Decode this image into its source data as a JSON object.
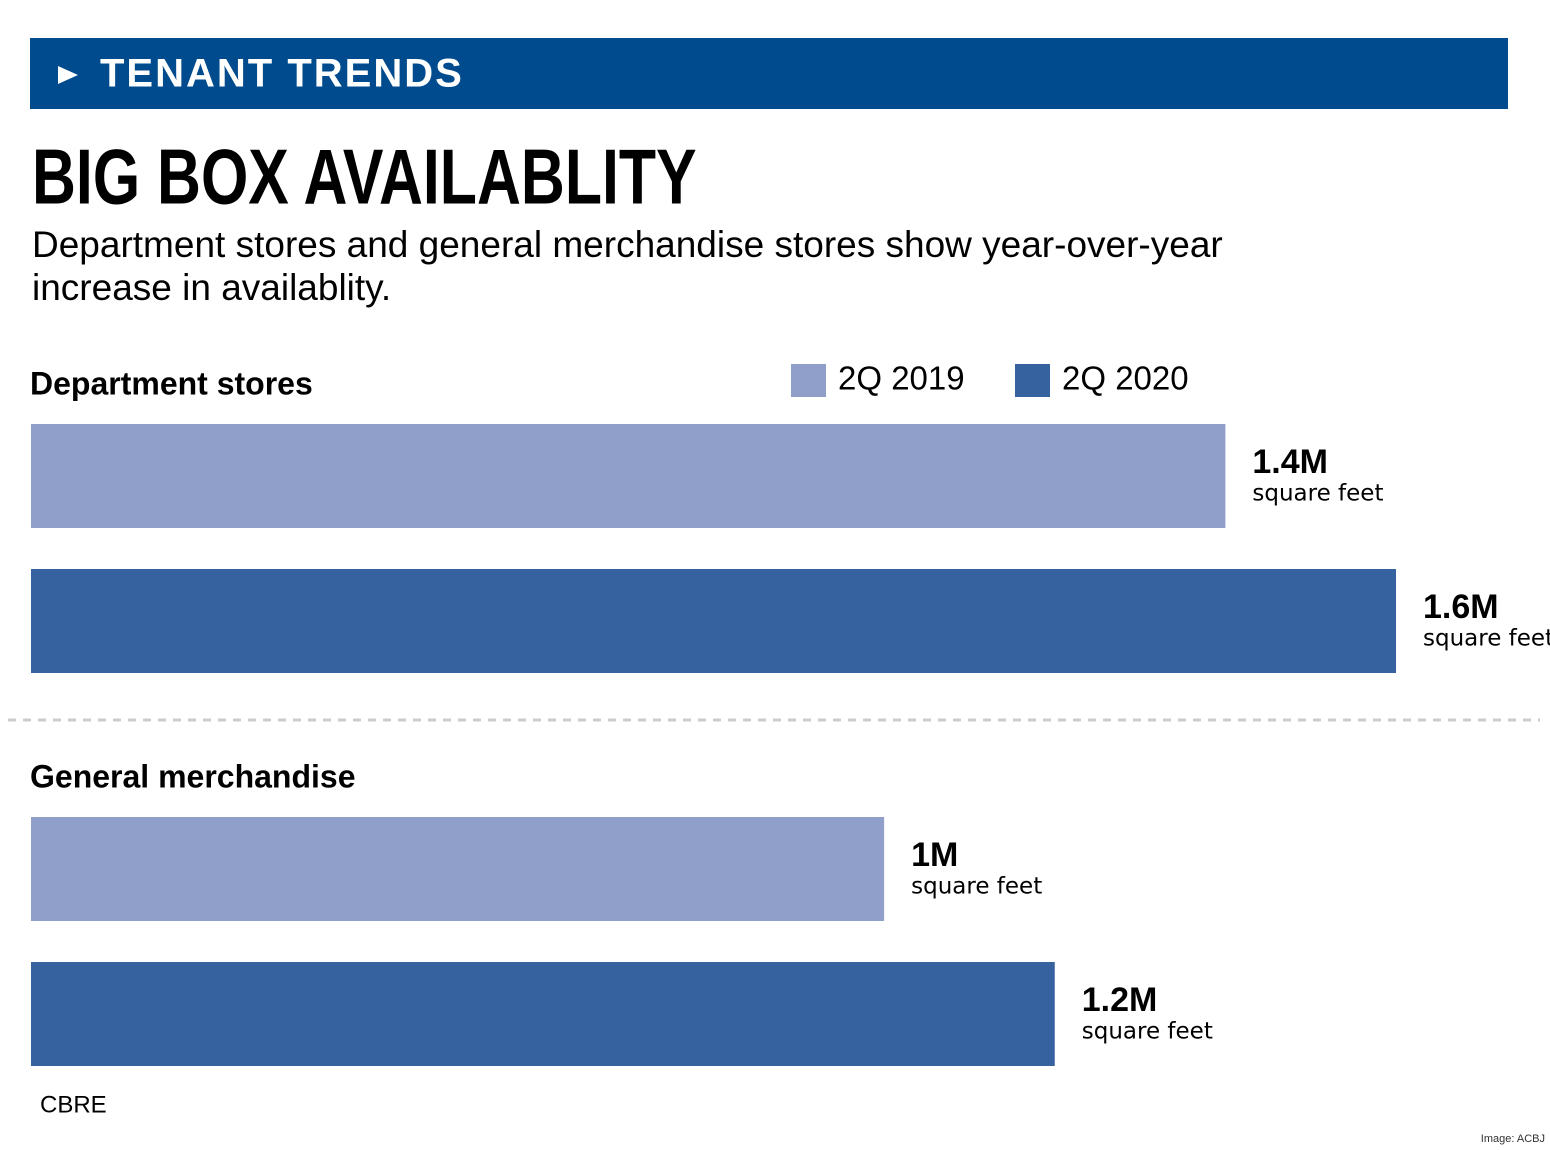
{
  "header": "TENANT TRENDS",
  "chart_data": {
    "type": "bar",
    "title": "BIG BOX AVAILABLITY",
    "subtitle": [
      "Department stores and general merchandise stores show year-over-year",
      "increase in availablity."
    ],
    "categories": [
      "Department stores",
      "General merchandise"
    ],
    "series": [
      {
        "name": "2Q 2019",
        "color": "#8f9fc9",
        "values": [
          1400000,
          1000000
        ],
        "value_labels": [
          "1.4M",
          "1M"
        ]
      },
      {
        "name": "2Q 2020",
        "color": "#3762a0",
        "values": [
          1600000,
          1200000
        ],
        "value_labels": [
          "1.6M",
          "1.2M"
        ]
      }
    ],
    "unit_label": "square feet",
    "source": "CBRE"
  },
  "credit": "Image: ACBJ"
}
